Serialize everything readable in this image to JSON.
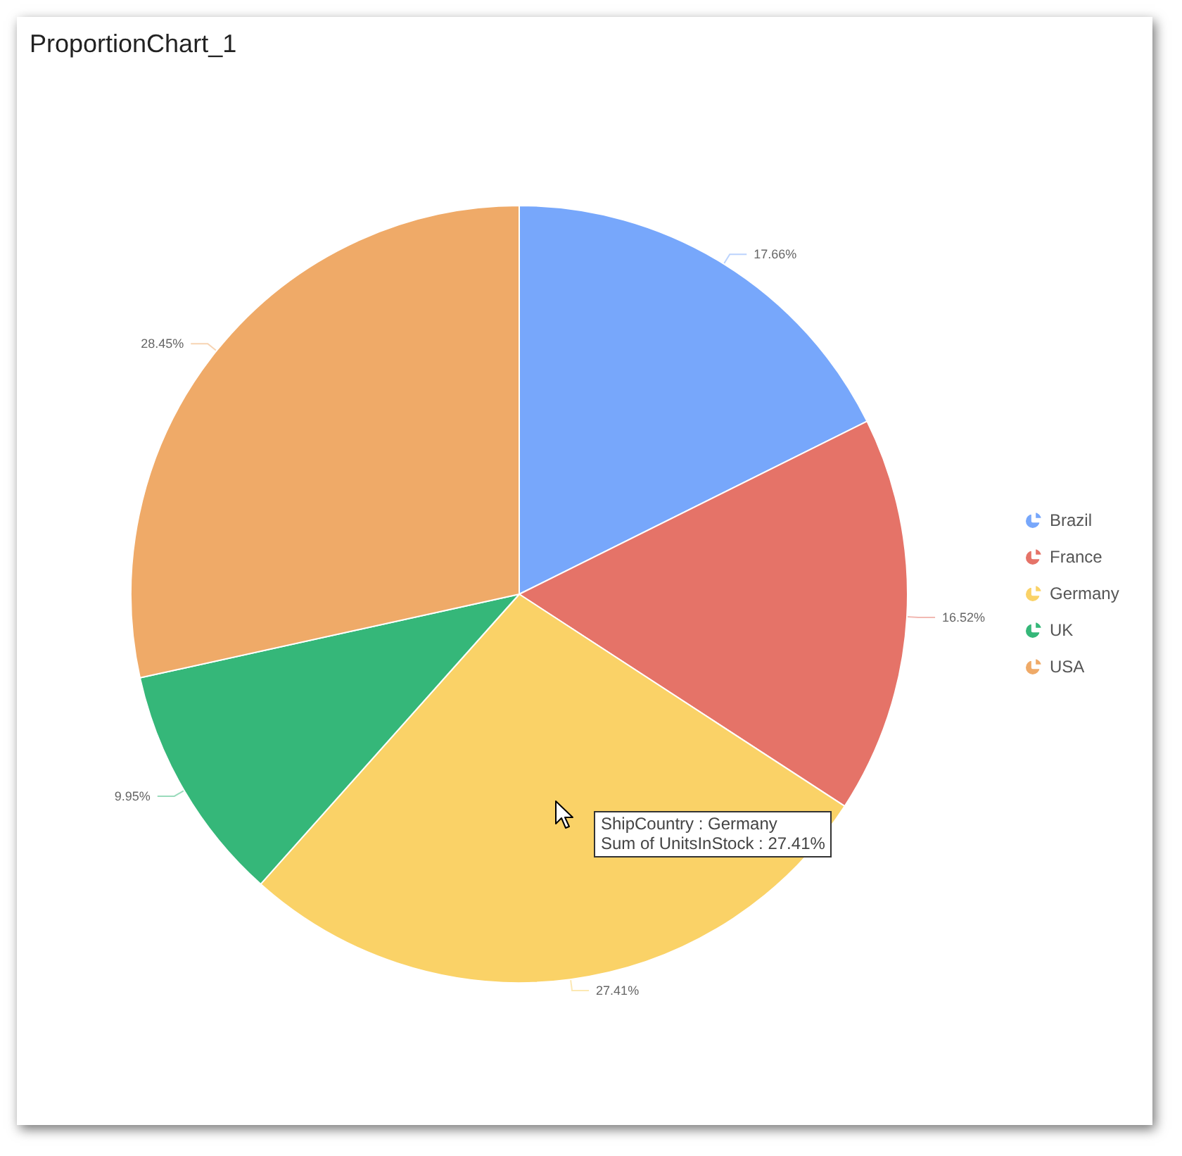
{
  "chart_data": {
    "type": "pie",
    "title": "ProportionChart_1",
    "categories": [
      "Brazil",
      "France",
      "Germany",
      "UK",
      "USA"
    ],
    "values": [
      17.66,
      16.52,
      27.41,
      9.95,
      28.45
    ],
    "colors": [
      "#77a7fb",
      "#e57368",
      "#fad267",
      "#35b779",
      "#efaa68"
    ],
    "value_labels": [
      "17.66%",
      "16.52%",
      "27.41%",
      "9.95%",
      "28.45%"
    ],
    "legend": "right",
    "annotations": [
      "ShipCountry : Germany",
      "Sum of UnitsInStock : 27.41%"
    ]
  }
}
